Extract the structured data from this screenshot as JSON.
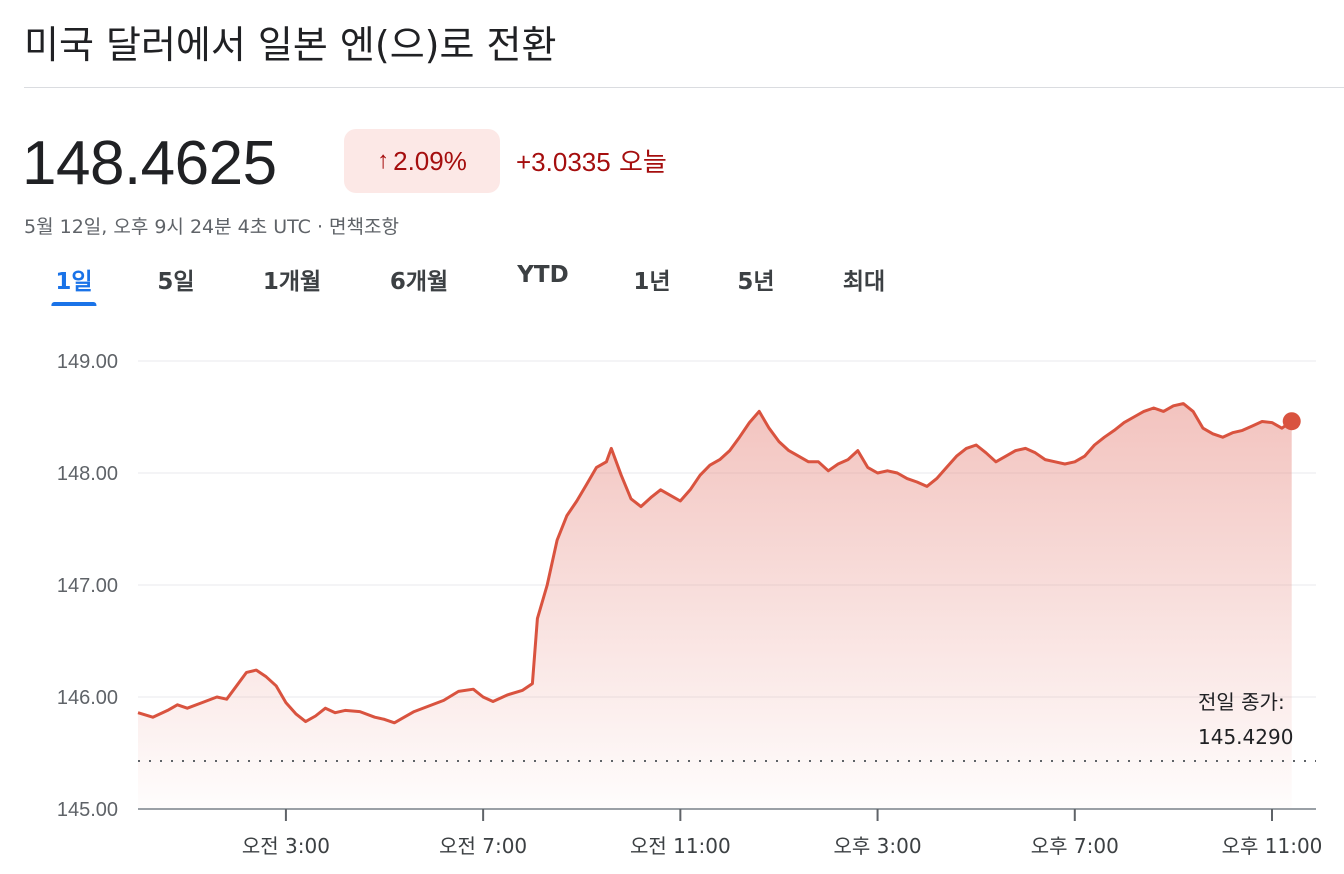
{
  "header": {
    "title": "미국 달러에서 일본 엔(으)로 전환"
  },
  "quote": {
    "price": "148.4625",
    "change_pct_arrow": "↑",
    "change_pct": "2.09%",
    "change_abs": "+3.0335",
    "change_period": "오늘",
    "timestamp": "5월 12일, 오후 9시 24분 4초 UTC · 면책조항"
  },
  "tabs": [
    {
      "label": "1일",
      "active": true
    },
    {
      "label": "5일",
      "active": false
    },
    {
      "label": "1개월",
      "active": false
    },
    {
      "label": "6개월",
      "active": false
    },
    {
      "label": "YTD",
      "active": false
    },
    {
      "label": "1년",
      "active": false
    },
    {
      "label": "5년",
      "active": false
    },
    {
      "label": "최대",
      "active": false
    }
  ],
  "colors": {
    "line": "#d9533f",
    "fill_top": "#e8928a",
    "accent_tab": "#1a73e8",
    "negative_text": "#a50e0e",
    "pill_bg": "#fce8e6"
  },
  "chart_data": {
    "type": "area",
    "y_ticks": [
      "149.00",
      "148.00",
      "147.00",
      "146.00",
      "145.00"
    ],
    "ylim": [
      145.0,
      149.0
    ],
    "x_ticks": [
      {
        "label": "오전 3:00",
        "hour": 3
      },
      {
        "label": "오전 7:00",
        "hour": 7
      },
      {
        "label": "오전 11:00",
        "hour": 11
      },
      {
        "label": "오후 3:00",
        "hour": 15
      },
      {
        "label": "오후 7:00",
        "hour": 19
      },
      {
        "label": "오후 11:00",
        "hour": 23
      }
    ],
    "xlim_hours": [
      0,
      23.5
    ],
    "previous_close_label_1": "전일 종가:",
    "previous_close_label_2": "145.4290",
    "previous_close": 145.429,
    "grid": true,
    "series": [
      {
        "points": [
          [
            0.0,
            145.86
          ],
          [
            0.3,
            145.82
          ],
          [
            0.6,
            145.88
          ],
          [
            0.8,
            145.93
          ],
          [
            1.0,
            145.9
          ],
          [
            1.3,
            145.95
          ],
          [
            1.6,
            146.0
          ],
          [
            1.8,
            145.98
          ],
          [
            2.0,
            146.1
          ],
          [
            2.2,
            146.22
          ],
          [
            2.4,
            146.24
          ],
          [
            2.6,
            146.18
          ],
          [
            2.8,
            146.1
          ],
          [
            3.0,
            145.95
          ],
          [
            3.2,
            145.85
          ],
          [
            3.4,
            145.78
          ],
          [
            3.6,
            145.83
          ],
          [
            3.8,
            145.9
          ],
          [
            4.0,
            145.86
          ],
          [
            4.2,
            145.88
          ],
          [
            4.5,
            145.87
          ],
          [
            4.8,
            145.82
          ],
          [
            5.0,
            145.8
          ],
          [
            5.2,
            145.77
          ],
          [
            5.4,
            145.82
          ],
          [
            5.6,
            145.87
          ],
          [
            5.9,
            145.92
          ],
          [
            6.2,
            145.97
          ],
          [
            6.5,
            146.05
          ],
          [
            6.8,
            146.07
          ],
          [
            7.0,
            146.0
          ],
          [
            7.2,
            145.96
          ],
          [
            7.5,
            146.02
          ],
          [
            7.8,
            146.06
          ],
          [
            8.0,
            146.12
          ],
          [
            8.1,
            146.7
          ],
          [
            8.3,
            147.0
          ],
          [
            8.5,
            147.4
          ],
          [
            8.7,
            147.62
          ],
          [
            8.9,
            147.75
          ],
          [
            9.1,
            147.9
          ],
          [
            9.3,
            148.05
          ],
          [
            9.5,
            148.1
          ],
          [
            9.6,
            148.22
          ],
          [
            9.8,
            147.98
          ],
          [
            10.0,
            147.77
          ],
          [
            10.2,
            147.7
          ],
          [
            10.4,
            147.78
          ],
          [
            10.6,
            147.85
          ],
          [
            10.8,
            147.8
          ],
          [
            11.0,
            147.75
          ],
          [
            11.2,
            147.85
          ],
          [
            11.4,
            147.98
          ],
          [
            11.6,
            148.07
          ],
          [
            11.8,
            148.12
          ],
          [
            12.0,
            148.2
          ],
          [
            12.2,
            148.32
          ],
          [
            12.4,
            148.45
          ],
          [
            12.6,
            148.55
          ],
          [
            12.8,
            148.4
          ],
          [
            13.0,
            148.28
          ],
          [
            13.2,
            148.2
          ],
          [
            13.4,
            148.15
          ],
          [
            13.6,
            148.1
          ],
          [
            13.8,
            148.1
          ],
          [
            14.0,
            148.02
          ],
          [
            14.2,
            148.08
          ],
          [
            14.4,
            148.12
          ],
          [
            14.6,
            148.2
          ],
          [
            14.8,
            148.05
          ],
          [
            15.0,
            148.0
          ],
          [
            15.2,
            148.02
          ],
          [
            15.4,
            148.0
          ],
          [
            15.6,
            147.95
          ],
          [
            15.8,
            147.92
          ],
          [
            16.0,
            147.88
          ],
          [
            16.2,
            147.95
          ],
          [
            16.4,
            148.05
          ],
          [
            16.6,
            148.15
          ],
          [
            16.8,
            148.22
          ],
          [
            17.0,
            148.25
          ],
          [
            17.2,
            148.18
          ],
          [
            17.4,
            148.1
          ],
          [
            17.6,
            148.15
          ],
          [
            17.8,
            148.2
          ],
          [
            18.0,
            148.22
          ],
          [
            18.2,
            148.18
          ],
          [
            18.4,
            148.12
          ],
          [
            18.6,
            148.1
          ],
          [
            18.8,
            148.08
          ],
          [
            19.0,
            148.1
          ],
          [
            19.2,
            148.15
          ],
          [
            19.4,
            148.25
          ],
          [
            19.6,
            148.32
          ],
          [
            19.8,
            148.38
          ],
          [
            20.0,
            148.45
          ],
          [
            20.2,
            148.5
          ],
          [
            20.4,
            148.55
          ],
          [
            20.6,
            148.58
          ],
          [
            20.8,
            148.55
          ],
          [
            21.0,
            148.6
          ],
          [
            21.2,
            148.62
          ],
          [
            21.4,
            148.55
          ],
          [
            21.6,
            148.4
          ],
          [
            21.8,
            148.35
          ],
          [
            22.0,
            148.32
          ],
          [
            22.2,
            148.36
          ],
          [
            22.4,
            148.38
          ],
          [
            22.6,
            148.42
          ],
          [
            22.8,
            148.46
          ],
          [
            23.0,
            148.45
          ],
          [
            23.2,
            148.4
          ],
          [
            23.4,
            148.4625
          ]
        ]
      }
    ]
  }
}
